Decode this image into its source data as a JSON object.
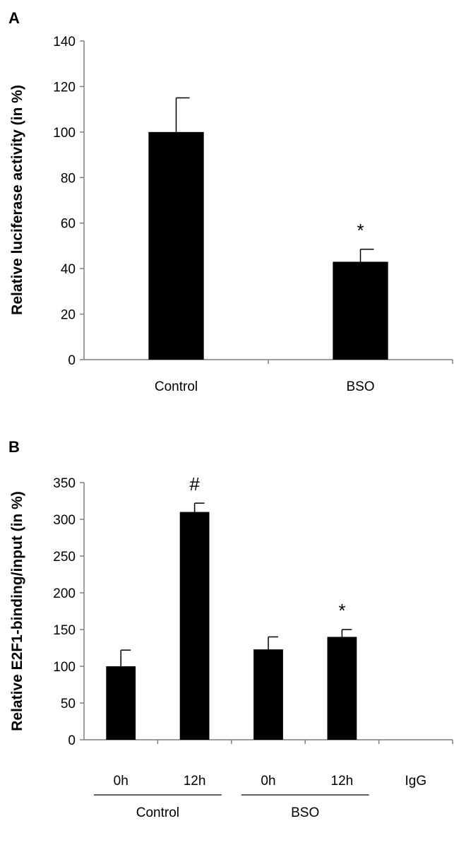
{
  "chart_data": [
    {
      "panel": "A",
      "type": "bar",
      "ylabel": "Relative luciferase activity (in %)",
      "xlabel": "",
      "ylim": [
        0,
        140
      ],
      "yticks": [
        "0",
        "20",
        "40",
        "60",
        "80",
        "100",
        "120",
        "140"
      ],
      "categories": [
        "Control",
        "BSO"
      ],
      "values": [
        100,
        43
      ],
      "errors": [
        15,
        5.5
      ],
      "annotations": [
        "",
        "*"
      ],
      "bar_color": "#000000",
      "grid": false
    },
    {
      "panel": "B",
      "type": "bar",
      "ylabel": "Relative E2F1-binding/input (in %)",
      "xlabel": "",
      "ylim": [
        0,
        350
      ],
      "yticks": [
        "0",
        "50",
        "100",
        "150",
        "200",
        "250",
        "300",
        "350"
      ],
      "categories": [
        "0h",
        "12h",
        "0h",
        "12h",
        "IgG"
      ],
      "values": [
        100,
        310,
        123,
        140,
        0
      ],
      "errors": [
        22,
        12,
        17,
        10,
        0
      ],
      "annotations": [
        "",
        "#",
        "",
        "*",
        ""
      ],
      "groups": [
        {
          "label": "Control",
          "categories": [
            "0h",
            "12h"
          ]
        },
        {
          "label": "BSO",
          "categories": [
            "0h",
            "12h"
          ]
        }
      ],
      "bar_color": "#000000",
      "grid": false
    }
  ]
}
